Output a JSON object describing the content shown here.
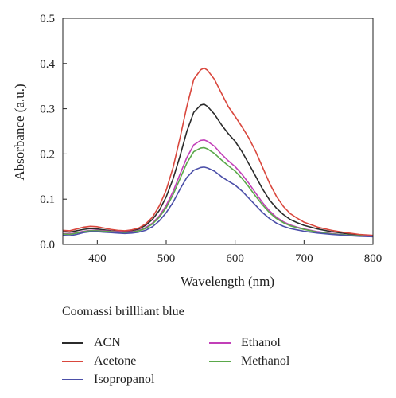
{
  "chart_data": {
    "type": "line",
    "title": "",
    "xlabel": "Wavelength (nm)",
    "ylabel": "Absorbance (a.u.)",
    "xlim": [
      350,
      800
    ],
    "ylim": [
      0.0,
      0.5
    ],
    "xticks": [
      "400",
      "500",
      "600",
      "700",
      "800"
    ],
    "xtick_values": [
      400,
      500,
      600,
      700,
      800
    ],
    "yticks": [
      "0.0",
      "0.1",
      "0.2",
      "0.3",
      "0.4",
      "0.5"
    ],
    "ytick_values": [
      0.0,
      0.1,
      0.2,
      0.3,
      0.4,
      0.5
    ],
    "grid": false,
    "legend_title": "Coomassi brillliant blue",
    "legend_position": "bottom",
    "x": [
      350,
      360,
      370,
      380,
      390,
      400,
      410,
      420,
      430,
      440,
      450,
      460,
      470,
      480,
      490,
      500,
      510,
      520,
      530,
      540,
      550,
      555,
      560,
      570,
      580,
      590,
      600,
      610,
      620,
      630,
      640,
      650,
      660,
      670,
      680,
      690,
      700,
      720,
      740,
      760,
      780,
      800
    ],
    "series": [
      {
        "name": "ACN",
        "color": "#2b2b2b",
        "values": [
          0.028,
          0.027,
          0.03,
          0.033,
          0.035,
          0.034,
          0.032,
          0.03,
          0.029,
          0.028,
          0.03,
          0.034,
          0.042,
          0.055,
          0.075,
          0.105,
          0.145,
          0.195,
          0.25,
          0.292,
          0.308,
          0.31,
          0.305,
          0.288,
          0.265,
          0.245,
          0.228,
          0.205,
          0.178,
          0.15,
          0.122,
          0.098,
          0.08,
          0.066,
          0.055,
          0.048,
          0.042,
          0.034,
          0.028,
          0.024,
          0.021,
          0.019
        ]
      },
      {
        "name": "Acetone",
        "color": "#d9473d",
        "values": [
          0.031,
          0.03,
          0.034,
          0.038,
          0.04,
          0.039,
          0.036,
          0.033,
          0.031,
          0.03,
          0.032,
          0.036,
          0.045,
          0.06,
          0.085,
          0.12,
          0.17,
          0.235,
          0.305,
          0.365,
          0.386,
          0.39,
          0.385,
          0.365,
          0.335,
          0.305,
          0.283,
          0.26,
          0.235,
          0.205,
          0.17,
          0.135,
          0.106,
          0.084,
          0.068,
          0.058,
          0.049,
          0.038,
          0.031,
          0.026,
          0.022,
          0.02
        ]
      },
      {
        "name": "Isopropanol",
        "color": "#4b4fa8",
        "values": [
          0.02,
          0.019,
          0.022,
          0.026,
          0.028,
          0.028,
          0.027,
          0.026,
          0.025,
          0.024,
          0.025,
          0.027,
          0.031,
          0.039,
          0.052,
          0.07,
          0.093,
          0.122,
          0.148,
          0.164,
          0.17,
          0.171,
          0.169,
          0.162,
          0.15,
          0.14,
          0.131,
          0.118,
          0.102,
          0.086,
          0.07,
          0.057,
          0.047,
          0.04,
          0.035,
          0.032,
          0.029,
          0.025,
          0.022,
          0.02,
          0.018,
          0.017
        ]
      },
      {
        "name": "Ethanol",
        "color": "#c23fb8",
        "values": [
          0.024,
          0.023,
          0.026,
          0.029,
          0.031,
          0.031,
          0.03,
          0.029,
          0.028,
          0.027,
          0.028,
          0.031,
          0.037,
          0.047,
          0.063,
          0.086,
          0.117,
          0.155,
          0.192,
          0.22,
          0.23,
          0.231,
          0.228,
          0.217,
          0.2,
          0.185,
          0.172,
          0.155,
          0.135,
          0.113,
          0.092,
          0.074,
          0.06,
          0.05,
          0.043,
          0.038,
          0.034,
          0.028,
          0.024,
          0.021,
          0.019,
          0.018
        ]
      },
      {
        "name": "Methanol",
        "color": "#5aa84a",
        "values": [
          0.023,
          0.022,
          0.025,
          0.028,
          0.03,
          0.03,
          0.029,
          0.028,
          0.027,
          0.026,
          0.027,
          0.03,
          0.035,
          0.045,
          0.06,
          0.081,
          0.11,
          0.145,
          0.18,
          0.205,
          0.213,
          0.214,
          0.211,
          0.201,
          0.187,
          0.174,
          0.162,
          0.146,
          0.127,
          0.106,
          0.087,
          0.07,
          0.057,
          0.048,
          0.041,
          0.037,
          0.033,
          0.027,
          0.023,
          0.021,
          0.019,
          0.017
        ]
      }
    ],
    "legend_order": [
      "ACN",
      "Ethanol",
      "Acetone",
      "Methanol",
      "Isopropanol"
    ]
  }
}
